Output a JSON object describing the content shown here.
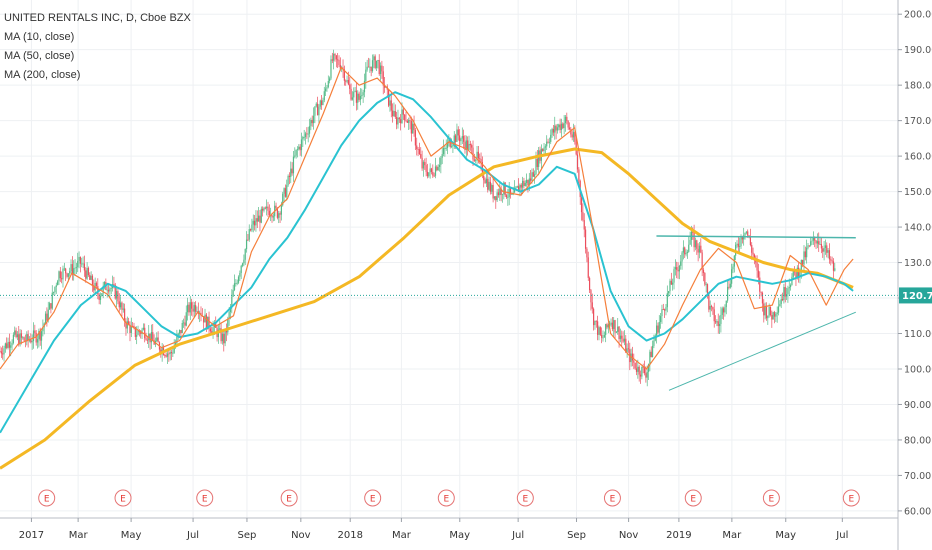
{
  "legend": {
    "title": "UNITED RENTALS INC, D, Cboe BZX",
    "ma10": "MA (10, close)",
    "ma50": "MA (50, close)",
    "ma200": "MA (200, close)"
  },
  "colors": {
    "candle_up": "#53b987",
    "candle_down": "#eb4d5c",
    "ma10": "#f57f3b",
    "ma50": "#2ac3d1",
    "ma200": "#f4b824",
    "trendline": "#4db6ac",
    "last_price": "#26a69a",
    "earnings": "#e57373",
    "grid": "#eef0f3"
  },
  "chart_data": {
    "type": "line",
    "yrange": [
      58,
      204
    ],
    "last_price": 120.73,
    "last_price_label": "120.73",
    "y_ticks": [
      "200.00",
      "190.00",
      "180.00",
      "170.00",
      "160.00",
      "150.00",
      "140.00",
      "130.00",
      "120.00",
      "110.00",
      "100.00",
      "90.00",
      "80.00",
      "70.00",
      "60.00"
    ],
    "y_tick_values": [
      200,
      190,
      180,
      170,
      160,
      150,
      140,
      130,
      120,
      110,
      100,
      90,
      80,
      70,
      60
    ],
    "x_ticks": [
      {
        "label": "2017",
        "t": 0.035
      },
      {
        "label": "Mar",
        "t": 0.087
      },
      {
        "label": "May",
        "t": 0.146
      },
      {
        "label": "Jul",
        "t": 0.215
      },
      {
        "label": "Sep",
        "t": 0.275
      },
      {
        "label": "Nov",
        "t": 0.335
      },
      {
        "label": "2018",
        "t": 0.39
      },
      {
        "label": "Mar",
        "t": 0.447
      },
      {
        "label": "May",
        "t": 0.512
      },
      {
        "label": "Jul",
        "t": 0.577
      },
      {
        "label": "Sep",
        "t": 0.642
      },
      {
        "label": "Nov",
        "t": 0.7
      },
      {
        "label": "2019",
        "t": 0.756
      },
      {
        "label": "Mar",
        "t": 0.815
      },
      {
        "label": "May",
        "t": 0.875
      },
      {
        "label": "Jul",
        "t": 0.938
      }
    ],
    "earnings_label": "E",
    "earnings_t": [
      0.052,
      0.137,
      0.228,
      0.322,
      0.415,
      0.497,
      0.585,
      0.682,
      0.772,
      0.859,
      0.948
    ],
    "price": {
      "t": [
        0.0,
        0.015,
        0.03,
        0.045,
        0.055,
        0.065,
        0.08,
        0.09,
        0.1,
        0.11,
        0.12,
        0.13,
        0.14,
        0.15,
        0.16,
        0.17,
        0.18,
        0.19,
        0.2,
        0.21,
        0.22,
        0.23,
        0.24,
        0.25,
        0.26,
        0.27,
        0.28,
        0.29,
        0.3,
        0.31,
        0.32,
        0.33,
        0.34,
        0.35,
        0.36,
        0.37,
        0.38,
        0.39,
        0.4,
        0.41,
        0.42,
        0.43,
        0.44,
        0.45,
        0.46,
        0.47,
        0.48,
        0.49,
        0.5,
        0.51,
        0.52,
        0.53,
        0.54,
        0.55,
        0.56,
        0.57,
        0.58,
        0.59,
        0.6,
        0.61,
        0.62,
        0.63,
        0.64,
        0.65,
        0.66,
        0.67,
        0.68,
        0.69,
        0.7,
        0.71,
        0.72,
        0.73,
        0.74,
        0.75,
        0.76,
        0.77,
        0.78,
        0.79,
        0.8,
        0.81,
        0.82,
        0.83,
        0.84,
        0.85,
        0.86,
        0.87,
        0.88,
        0.89,
        0.9,
        0.91,
        0.92,
        0.93,
        0.94,
        0.95,
        0.955
      ],
      "v": [
        105,
        109,
        108,
        110,
        117,
        127,
        128,
        130,
        125,
        121,
        124,
        121,
        113,
        110,
        111,
        108,
        106,
        104,
        110,
        117,
        118,
        113,
        111,
        108,
        122,
        131,
        140,
        143,
        145,
        144,
        152,
        161,
        166,
        172,
        176,
        187,
        186,
        178,
        176,
        185,
        187,
        178,
        170,
        172,
        167,
        157,
        155,
        159,
        164,
        166,
        163,
        160,
        154,
        149,
        151,
        148,
        152,
        153,
        160,
        165,
        168,
        170,
        164,
        140,
        115,
        108,
        114,
        110,
        104,
        100,
        99,
        110,
        118,
        126,
        132,
        137,
        133,
        117,
        112,
        122,
        134,
        140,
        131,
        117,
        115,
        120,
        125,
        128,
        134,
        137,
        133,
        127
      ]
    },
    "ma10": {
      "t": [
        0.0,
        0.02,
        0.04,
        0.06,
        0.08,
        0.1,
        0.12,
        0.14,
        0.16,
        0.18,
        0.2,
        0.22,
        0.24,
        0.26,
        0.28,
        0.3,
        0.32,
        0.34,
        0.36,
        0.38,
        0.4,
        0.42,
        0.44,
        0.46,
        0.48,
        0.5,
        0.52,
        0.54,
        0.56,
        0.58,
        0.6,
        0.62,
        0.64,
        0.66,
        0.68,
        0.7,
        0.72,
        0.74,
        0.76,
        0.78,
        0.8,
        0.82,
        0.84,
        0.86,
        0.88,
        0.9,
        0.92,
        0.94,
        0.95
      ],
      "v": [
        100,
        107,
        109,
        116,
        127,
        124,
        121,
        113,
        110,
        106,
        108,
        116,
        112,
        115,
        133,
        143,
        148,
        160,
        172,
        185,
        180,
        182,
        177,
        170,
        160,
        164,
        162,
        157,
        150,
        149,
        155,
        164,
        168,
        140,
        110,
        104,
        100,
        107,
        118,
        128,
        134,
        130,
        117,
        118,
        132,
        128,
        118,
        128,
        131
      ]
    },
    "ma50": {
      "t": [
        0.0,
        0.03,
        0.06,
        0.09,
        0.12,
        0.14,
        0.16,
        0.18,
        0.2,
        0.22,
        0.24,
        0.26,
        0.28,
        0.3,
        0.32,
        0.34,
        0.36,
        0.38,
        0.4,
        0.42,
        0.44,
        0.46,
        0.48,
        0.5,
        0.52,
        0.54,
        0.56,
        0.58,
        0.6,
        0.62,
        0.64,
        0.66,
        0.68,
        0.7,
        0.72,
        0.74,
        0.76,
        0.78,
        0.8,
        0.82,
        0.84,
        0.86,
        0.88,
        0.9,
        0.92,
        0.94,
        0.95
      ],
      "v": [
        82,
        95,
        108,
        118,
        124,
        122,
        117,
        112,
        109,
        110,
        113,
        118,
        123,
        131,
        137,
        145,
        154,
        163,
        170,
        175,
        178,
        176,
        171,
        165,
        159,
        156,
        152,
        150,
        152,
        157,
        155,
        140,
        122,
        112,
        108,
        110,
        114,
        119,
        124,
        126,
        125,
        124,
        125,
        127,
        126,
        124,
        122
      ]
    },
    "ma200": {
      "t": [
        0.0,
        0.05,
        0.1,
        0.15,
        0.2,
        0.25,
        0.3,
        0.35,
        0.4,
        0.45,
        0.5,
        0.55,
        0.6,
        0.64,
        0.67,
        0.7,
        0.73,
        0.76,
        0.79,
        0.82,
        0.85,
        0.88,
        0.91,
        0.94,
        0.95
      ],
      "v": [
        72,
        80,
        91,
        101,
        107,
        111,
        115,
        119,
        126,
        137,
        149,
        157,
        160,
        162,
        161,
        155,
        148,
        141,
        136,
        133,
        130,
        128,
        127,
        124,
        123
      ]
    },
    "trendlines": [
      {
        "t1": 0.745,
        "v1": 94,
        "t2": 0.953,
        "v2": 116
      },
      {
        "t1": 0.731,
        "v1": 137.5,
        "t2": 0.953,
        "v2": 137
      }
    ]
  }
}
